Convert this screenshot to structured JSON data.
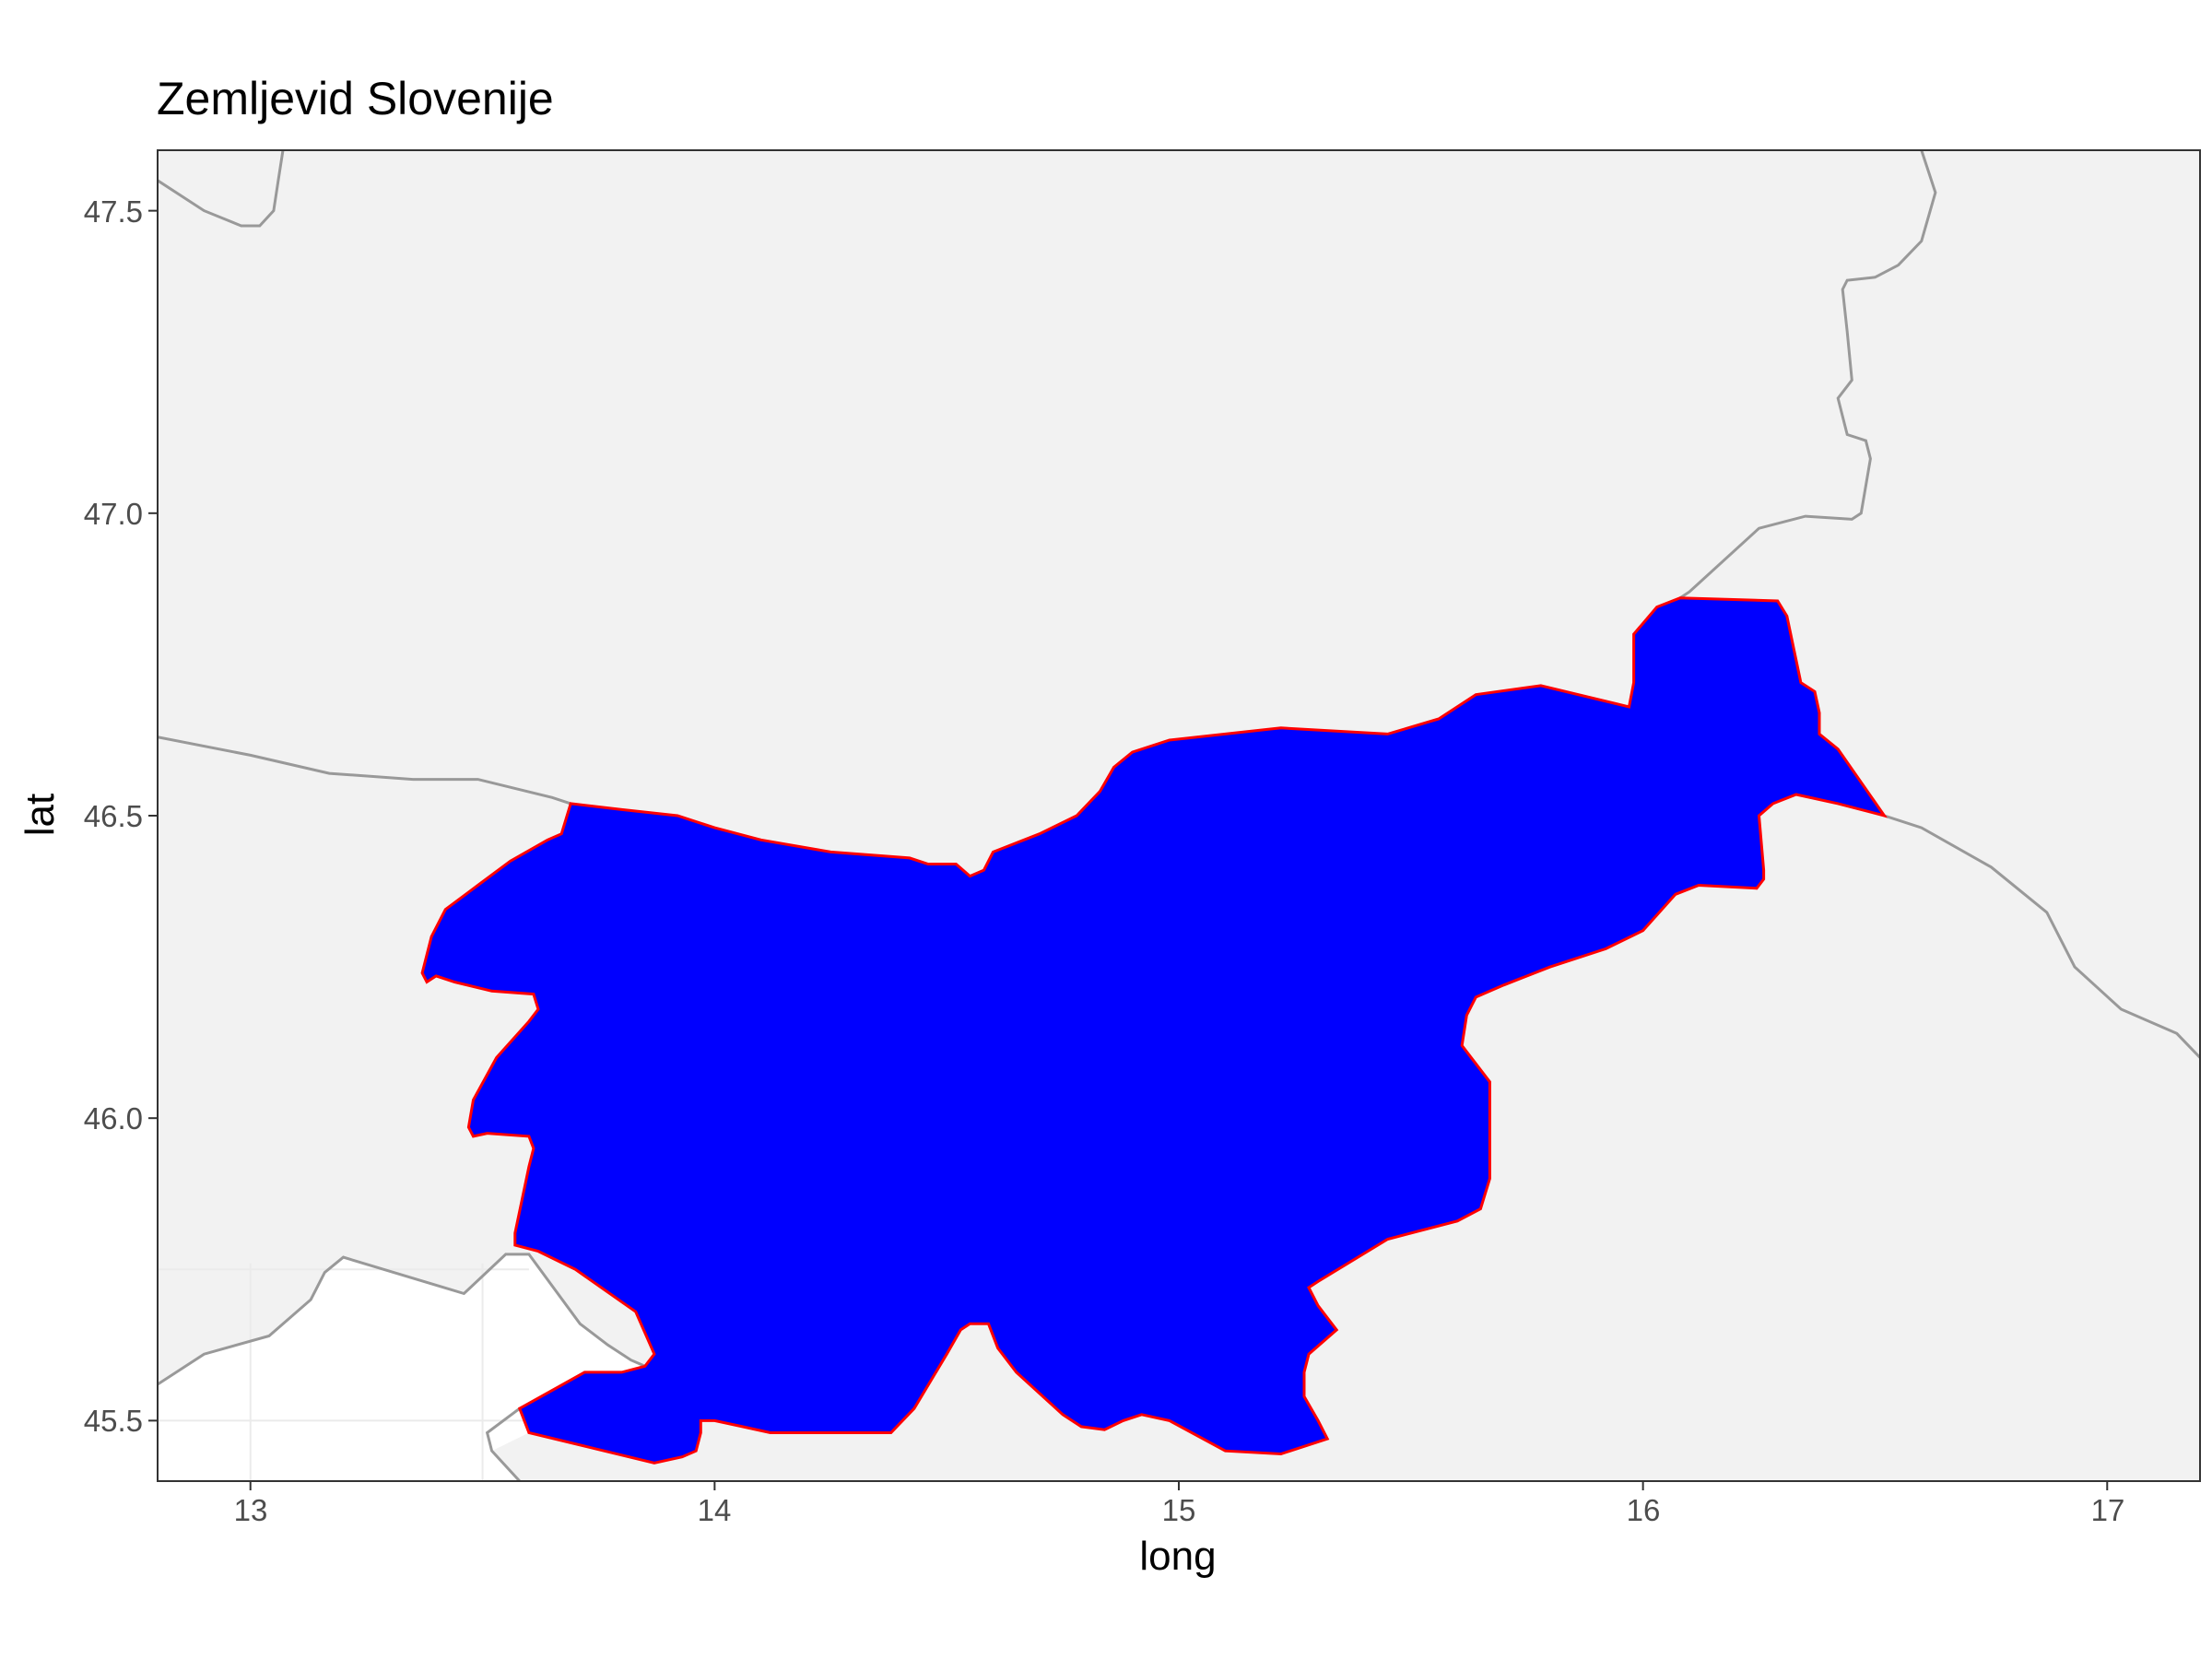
{
  "title": "Zemljevid Slovenije",
  "axes": {
    "x_label": "long",
    "y_label": "lat",
    "x_ticks": [
      "13",
      "14",
      "15",
      "16",
      "17"
    ],
    "y_ticks": [
      "45.5",
      "46.0",
      "46.5",
      "47.0",
      "47.5"
    ]
  },
  "chart_data": {
    "type": "map",
    "title": "Zemljevid Slovenije",
    "xlabel": "long",
    "ylabel": "lat",
    "xlim": [
      12.8,
      17.2
    ],
    "ylim": [
      45.4,
      47.6
    ],
    "x_ticks": [
      13,
      14,
      15,
      16,
      17
    ],
    "y_ticks": [
      45.5,
      46.0,
      46.5,
      47.0,
      47.5
    ],
    "colors": {
      "panel_background": "#f2f2f2",
      "outside_region": "#ffffff",
      "neighbor_border": "#999999",
      "country_fill": "#0000ff",
      "country_outline": "#ff0000",
      "grid": "#ebebeb"
    },
    "highlighted_region": {
      "fill": "#0000ff",
      "outline": "#ff0000",
      "coords": [
        [
          13.69,
          46.52
        ],
        [
          13.8,
          46.51
        ],
        [
          13.92,
          46.5
        ],
        [
          14.0,
          46.48
        ],
        [
          14.1,
          46.46
        ],
        [
          14.25,
          46.44
        ],
        [
          14.42,
          46.43
        ],
        [
          14.46,
          46.42
        ],
        [
          14.52,
          46.42
        ],
        [
          14.55,
          46.4
        ],
        [
          14.58,
          46.41
        ],
        [
          14.6,
          46.44
        ],
        [
          14.7,
          46.47
        ],
        [
          14.78,
          46.5
        ],
        [
          14.83,
          46.54
        ],
        [
          14.86,
          46.58
        ],
        [
          14.9,
          46.605
        ],
        [
          14.98,
          46.625
        ],
        [
          15.1,
          46.635
        ],
        [
          15.22,
          46.645
        ],
        [
          15.45,
          46.635
        ],
        [
          15.56,
          46.66
        ],
        [
          15.64,
          46.7
        ],
        [
          15.78,
          46.715
        ],
        [
          15.97,
          46.68
        ],
        [
          15.98,
          46.72
        ],
        [
          15.98,
          46.8
        ],
        [
          16.03,
          46.845
        ],
        [
          16.08,
          46.86
        ],
        [
          16.29,
          46.855
        ],
        [
          16.31,
          46.83
        ],
        [
          16.34,
          46.72
        ],
        [
          16.37,
          46.705
        ],
        [
          16.38,
          46.67
        ],
        [
          16.38,
          46.635
        ],
        [
          16.42,
          46.61
        ],
        [
          16.52,
          46.5
        ],
        [
          16.42,
          46.52
        ],
        [
          16.33,
          46.535
        ],
        [
          16.28,
          46.52
        ],
        [
          16.25,
          46.5
        ],
        [
          16.26,
          46.41
        ],
        [
          16.26,
          46.395
        ],
        [
          16.245,
          46.38
        ],
        [
          16.12,
          46.385
        ],
        [
          16.07,
          46.37
        ],
        [
          16.0,
          46.31
        ],
        [
          15.92,
          46.28
        ],
        [
          15.8,
          46.25
        ],
        [
          15.7,
          46.22
        ],
        [
          15.64,
          46.2
        ],
        [
          15.62,
          46.17
        ],
        [
          15.61,
          46.12
        ],
        [
          15.67,
          46.06
        ],
        [
          15.67,
          45.98
        ],
        [
          15.67,
          45.9
        ],
        [
          15.65,
          45.85
        ],
        [
          15.6,
          45.83
        ],
        [
          15.45,
          45.8
        ],
        [
          15.3,
          45.73
        ],
        [
          15.28,
          45.72
        ],
        [
          15.3,
          45.69
        ],
        [
          15.34,
          45.65
        ],
        [
          15.28,
          45.61
        ],
        [
          15.27,
          45.58
        ],
        [
          15.27,
          45.54
        ],
        [
          15.3,
          45.5
        ],
        [
          15.32,
          45.47
        ],
        [
          15.22,
          45.445
        ],
        [
          15.1,
          45.45
        ],
        [
          14.98,
          45.5
        ],
        [
          14.92,
          45.51
        ],
        [
          14.88,
          45.5
        ],
        [
          14.84,
          45.485
        ],
        [
          14.79,
          45.49
        ],
        [
          14.75,
          45.51
        ],
        [
          14.65,
          45.58
        ],
        [
          14.61,
          45.62
        ],
        [
          14.59,
          45.66
        ],
        [
          14.55,
          45.66
        ],
        [
          14.53,
          45.65
        ],
        [
          14.5,
          45.61
        ],
        [
          14.43,
          45.52
        ],
        [
          14.38,
          45.48
        ],
        [
          14.25,
          45.48
        ],
        [
          14.12,
          45.48
        ],
        [
          14.06,
          45.49
        ],
        [
          14.0,
          45.5
        ],
        [
          13.97,
          45.5
        ],
        [
          13.97,
          45.48
        ],
        [
          13.96,
          45.45
        ],
        [
          13.93,
          45.44
        ],
        [
          13.87,
          45.43
        ],
        [
          13.6,
          45.48
        ],
        [
          13.58,
          45.52
        ],
        [
          13.72,
          45.58
        ],
        [
          13.8,
          45.58
        ],
        [
          13.85,
          45.59
        ],
        [
          13.87,
          45.61
        ],
        [
          13.83,
          45.68
        ],
        [
          13.7,
          45.75
        ],
        [
          13.62,
          45.78
        ],
        [
          13.57,
          45.79
        ],
        [
          13.57,
          45.81
        ],
        [
          13.6,
          45.92
        ],
        [
          13.61,
          45.95
        ],
        [
          13.6,
          45.97
        ],
        [
          13.51,
          45.975
        ],
        [
          13.48,
          45.97
        ],
        [
          13.47,
          45.985
        ],
        [
          13.48,
          46.03
        ],
        [
          13.53,
          46.1
        ],
        [
          13.6,
          46.16
        ],
        [
          13.62,
          46.18
        ],
        [
          13.61,
          46.205
        ],
        [
          13.52,
          46.21
        ],
        [
          13.44,
          46.225
        ],
        [
          13.4,
          46.235
        ],
        [
          13.38,
          46.225
        ],
        [
          13.37,
          46.24
        ],
        [
          13.39,
          46.3
        ],
        [
          13.42,
          46.345
        ],
        [
          13.49,
          46.385
        ],
        [
          13.56,
          46.425
        ],
        [
          13.64,
          46.46
        ],
        [
          13.67,
          46.47
        ]
      ]
    },
    "neighbor_borders": [
      [
        [
          12.8,
          47.55
        ],
        [
          12.9,
          47.5
        ],
        [
          12.98,
          47.475
        ],
        [
          13.02,
          47.475
        ],
        [
          13.05,
          47.5
        ],
        [
          13.06,
          47.55
        ],
        [
          13.07,
          47.6
        ]
      ],
      [
        [
          16.6,
          47.6
        ],
        [
          16.63,
          47.53
        ],
        [
          16.6,
          47.45
        ],
        [
          16.55,
          47.41
        ],
        [
          16.5,
          47.39
        ],
        [
          16.44,
          47.385
        ],
        [
          16.43,
          47.37
        ],
        [
          16.44,
          47.3
        ],
        [
          16.45,
          47.22
        ],
        [
          16.42,
          47.19
        ],
        [
          16.44,
          47.13
        ],
        [
          16.48,
          47.12
        ],
        [
          16.49,
          47.09
        ],
        [
          16.47,
          47.0
        ],
        [
          16.45,
          46.99
        ],
        [
          16.35,
          46.995
        ],
        [
          16.25,
          46.975
        ],
        [
          16.1,
          46.87
        ],
        [
          16.08,
          46.86
        ]
      ],
      [
        [
          12.8,
          46.63
        ],
        [
          13.0,
          46.6
        ],
        [
          13.17,
          46.57
        ],
        [
          13.35,
          46.56
        ],
        [
          13.49,
          46.56
        ],
        [
          13.65,
          46.53
        ],
        [
          13.69,
          46.52
        ]
      ],
      [
        [
          16.52,
          46.5
        ],
        [
          16.6,
          46.48
        ],
        [
          16.75,
          46.415
        ],
        [
          16.87,
          46.34
        ],
        [
          16.93,
          46.25
        ],
        [
          17.03,
          46.18
        ],
        [
          17.15,
          46.14
        ],
        [
          17.2,
          46.1
        ]
      ],
      [
        [
          12.8,
          45.56
        ],
        [
          12.9,
          45.61
        ],
        [
          13.04,
          45.64
        ],
        [
          13.13,
          45.7
        ],
        [
          13.16,
          45.745
        ],
        [
          13.2,
          45.77
        ],
        [
          13.46,
          45.71
        ],
        [
          13.55,
          45.775
        ],
        [
          13.6,
          45.775
        ],
        [
          13.71,
          45.66
        ],
        [
          13.77,
          45.625
        ],
        [
          13.82,
          45.6
        ],
        [
          13.85,
          45.59
        ]
      ],
      [
        [
          13.58,
          45.4
        ],
        [
          13.52,
          45.45
        ],
        [
          13.51,
          45.48
        ],
        [
          13.58,
          45.52
        ]
      ]
    ],
    "background_grid_lines": {
      "x": [
        13.0,
        13.5
      ],
      "y": [
        45.5,
        45.75
      ]
    }
  }
}
